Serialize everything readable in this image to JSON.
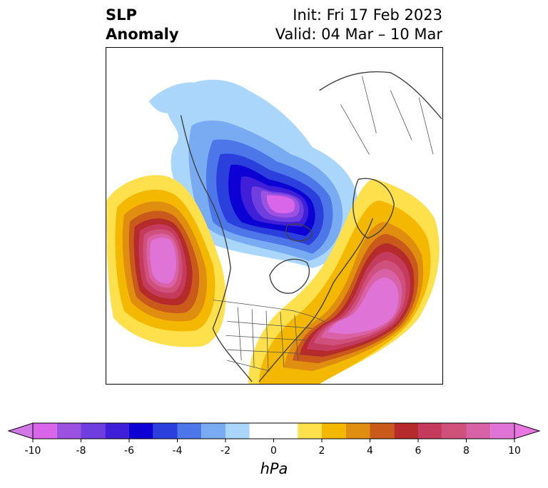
{
  "title": {
    "left_line1": "SLP",
    "left_line2": "Anomaly",
    "right_line1": "Init: Fri 17 Feb 2023",
    "right_line2": "Valid: 04 Mar – 10 Mar"
  },
  "colorbar": {
    "unit_label": "hPa",
    "extend": "both",
    "ticks": [
      "-10",
      "-8",
      "-6",
      "-4",
      "-2",
      "0",
      "2",
      "4",
      "6",
      "8",
      "10"
    ],
    "levels": [
      -10,
      -9,
      -8,
      -7,
      -6,
      -5,
      -4,
      -3,
      -2,
      -1,
      1,
      2,
      3,
      4,
      5,
      6,
      7,
      8,
      9,
      10
    ],
    "colors": [
      "#d966e8",
      "#9b52e0",
      "#6e3ede",
      "#3f1fd8",
      "#0d00d4",
      "#2a3fdc",
      "#4d77e8",
      "#78abf2",
      "#a9d6fa",
      "#ffffff",
      "#fde04b",
      "#f5b800",
      "#e08e10",
      "#c95a1c",
      "#b52a2a",
      "#c43b5e",
      "#d0507c",
      "#d962a6",
      "#e074d6"
    ],
    "under_color": "#d278e6",
    "over_color": "#e878e0"
  },
  "map": {
    "projection": "north-polar-stereographic",
    "field": "SLP anomaly",
    "features": [
      "coastlines",
      "country borders",
      "US state borders"
    ]
  }
}
